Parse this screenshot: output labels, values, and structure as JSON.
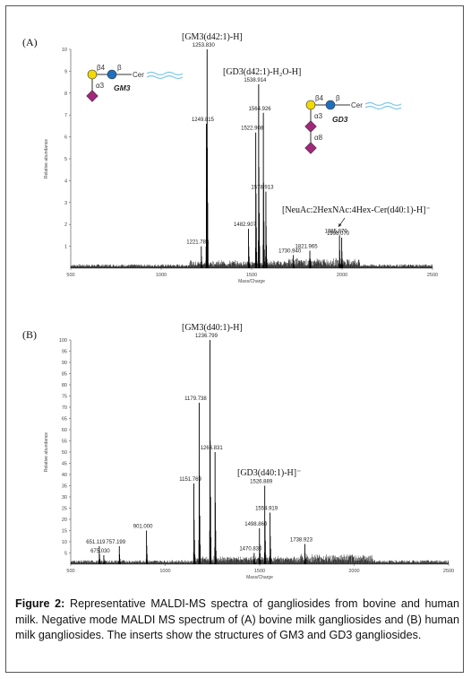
{
  "caption": {
    "label": "Figure 2:",
    "text": "Representative MALDI-MS spectra of gangliosides from bovine and human milk. Negative mode MALDI MS spectrum of (A) bovine milk gangliosides and (B) human milk gangliosides. The inserts show the structures of GM3 and GD3 gangliosides."
  },
  "colors": {
    "spectrum": "#000000",
    "gal": "#f2d900",
    "glc": "#1f6fbf",
    "neuac": "#a0287a",
    "ceramide": "#7ec8ea"
  },
  "chart_data": [
    {
      "type": "line",
      "panel": "(A)",
      "xlabel": "Mass/Charge",
      "ylabel": "Relative abundance",
      "xlim": [
        500,
        2500
      ],
      "ylim": [
        0,
        100
      ],
      "xticks": [
        "500",
        "1000",
        "1500",
        "2000",
        "2500"
      ],
      "yticks": [
        "10",
        "9",
        "8",
        "7",
        "6",
        "5",
        "4",
        "3",
        "2",
        "1"
      ],
      "yticks_values": [
        100,
        90,
        80,
        70,
        60,
        50,
        40,
        30,
        20,
        10
      ],
      "peaks": [
        {
          "mz": 1221.783,
          "label": "1221.783",
          "y": 10
        },
        {
          "mz": 1249.815,
          "label": "1249.815",
          "y": 66
        },
        {
          "mz": 1253.83,
          "label": "1253.830",
          "y": 100
        },
        {
          "mz": 1482.907,
          "label": "1482.907",
          "y": 18
        },
        {
          "mz": 1522.908,
          "label": "1522.908",
          "y": 62
        },
        {
          "mz": 1538.914,
          "label": "1538.914",
          "y": 84
        },
        {
          "mz": 1564.926,
          "label": "1564.926",
          "y": 71
        },
        {
          "mz": 1578.913,
          "label": "1578.913",
          "y": 35
        },
        {
          "mz": 1730.94,
          "label": "1730.940",
          "y": 6
        },
        {
          "mz": 1821.965,
          "label": "1821.965",
          "y": 8
        },
        {
          "mz": 1985.87,
          "label": "1985.870",
          "y": 15
        },
        {
          "mz": 1998.07,
          "label": "1998.070",
          "y": 14
        }
      ],
      "annotations": [
        "[GM3(d42:1)-H]",
        "[GD3(d42:1)-H₂O-H]",
        "[NeuAc:2HexNAc:4Hex-Cer(d40:1)-H]⁻"
      ],
      "glycans": [
        {
          "name": "GM3",
          "linkages": [
            "β4",
            "β",
            "α3"
          ],
          "tail": "Cer"
        },
        {
          "name": "GD3",
          "linkages": [
            "β4",
            "β",
            "α3",
            "α8"
          ],
          "tail": "Cer"
        }
      ]
    },
    {
      "type": "line",
      "panel": "(B)",
      "xlabel": "Mass/Charge",
      "ylabel": "Relative abundance",
      "xlim": [
        500,
        2500
      ],
      "ylim": [
        0,
        100
      ],
      "xticks": [
        "500",
        "1000",
        "1500",
        "2000",
        "2500"
      ],
      "yticks": [
        "100",
        "95",
        "90",
        "85",
        "80",
        "75",
        "70",
        "65",
        "60",
        "55",
        "50",
        "45",
        "40",
        "35",
        "30",
        "25",
        "20",
        "15",
        "10",
        "5"
      ],
      "yticks_values": [
        100,
        95,
        90,
        85,
        80,
        75,
        70,
        65,
        60,
        55,
        50,
        45,
        40,
        35,
        30,
        25,
        20,
        15,
        10,
        5
      ],
      "peaks": [
        {
          "mz": 651.119,
          "label": "651.119",
          "y": 8
        },
        {
          "mz": 675.03,
          "label": "675.030",
          "y": 4
        },
        {
          "mz": 757.199,
          "label": "757.199",
          "y": 8
        },
        {
          "mz": 901.0,
          "label": "901.000",
          "y": 15
        },
        {
          "mz": 1151.769,
          "label": "1151.769",
          "y": 36
        },
        {
          "mz": 1179.738,
          "label": "1179.738",
          "y": 72
        },
        {
          "mz": 1236.799,
          "label": "1236.799",
          "y": 100
        },
        {
          "mz": 1263.831,
          "label": "1263.831",
          "y": 50
        },
        {
          "mz": 1470.83,
          "label": "1470.830",
          "y": 5
        },
        {
          "mz": 1498.86,
          "label": "1498.860",
          "y": 16
        },
        {
          "mz": 1526.889,
          "label": "1526.889",
          "y": 35
        },
        {
          "mz": 1554.919,
          "label": "1554.919",
          "y": 23
        },
        {
          "mz": 1738.923,
          "label": "1738.923",
          "y": 9
        }
      ],
      "annotations": [
        "[GM3(d40:1)-H]",
        "[GD3(d40:1)-H]⁻"
      ]
    }
  ]
}
